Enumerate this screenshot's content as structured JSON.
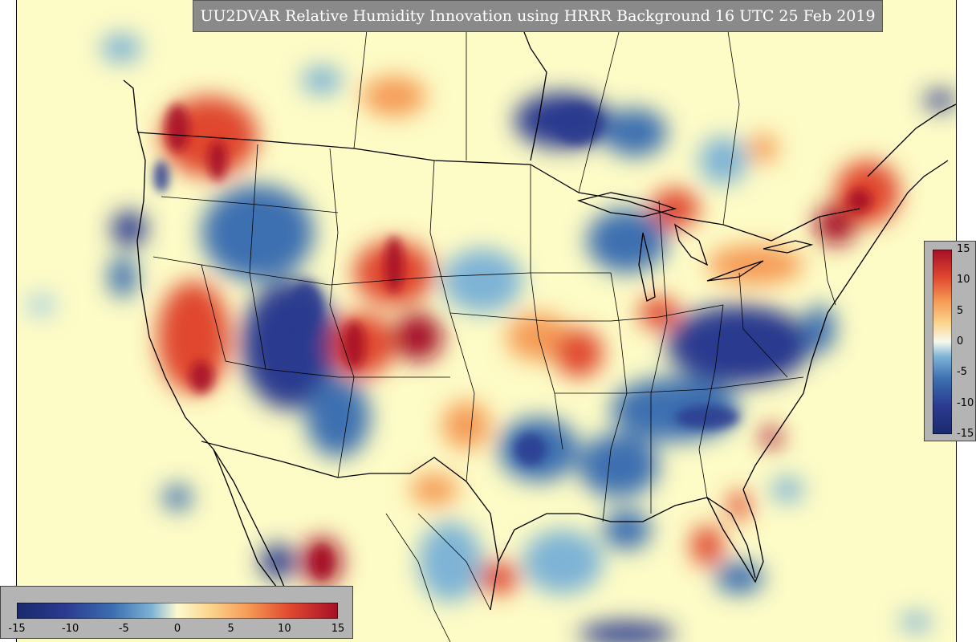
{
  "title": "UU2DVAR Relative Humidity Innovation using HRRR Background 16 UTC 25 Feb 2019",
  "colorbar": {
    "min": -15,
    "max": 15,
    "vertical_tick_labels": [
      "15",
      "10",
      "5",
      "0",
      "-5",
      "-10",
      "-15"
    ],
    "vertical_tick_values": [
      15,
      10,
      5,
      0,
      -5,
      -10,
      -15
    ],
    "horizontal_tick_labels": [
      "-15",
      "-10",
      "-5",
      "0",
      "5",
      "10",
      "15"
    ],
    "horizontal_tick_values": [
      -15,
      -10,
      -5,
      0,
      5,
      10,
      15
    ],
    "colors": [
      "#2b3a8f",
      "#3c6fb1",
      "#7eb3d6",
      "#d5ebf2",
      "#fdfbd0",
      "#fbd58e",
      "#f59b56",
      "#e0472f",
      "#a50f26"
    ]
  },
  "map": {
    "background_color": "#fdfbc6",
    "line_color": "#000000"
  }
}
